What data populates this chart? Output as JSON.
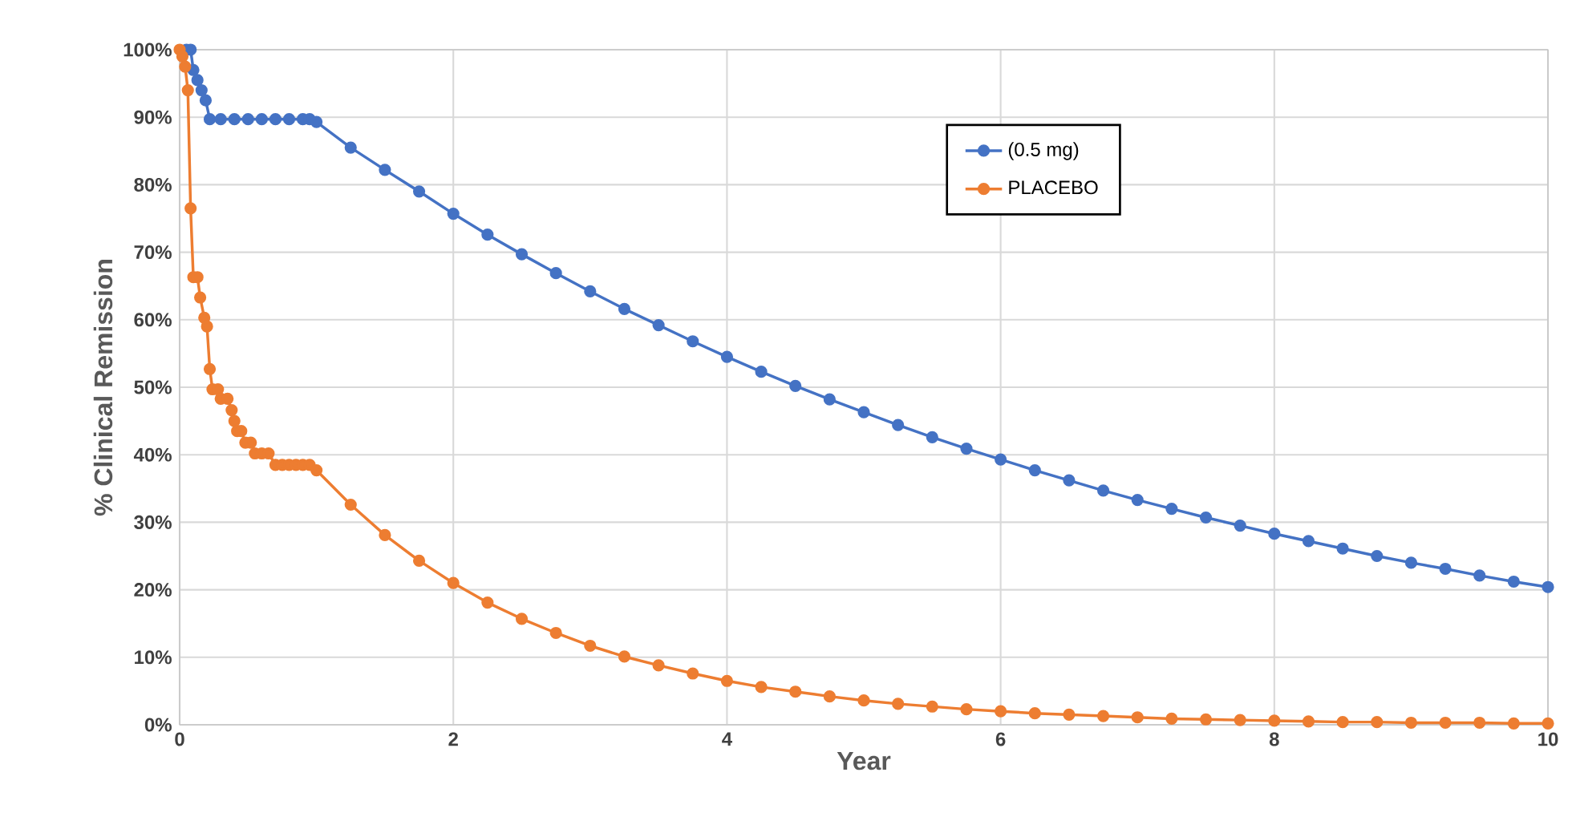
{
  "chart_data": {
    "type": "line",
    "xlabel": "Year",
    "ylabel": "% Clinical Remission",
    "xlim": [
      0,
      10
    ],
    "xticks": [
      0,
      2,
      4,
      6,
      8,
      10
    ],
    "ylim": [
      0,
      100
    ],
    "yticks": [
      {
        "value": 0,
        "label": "0%"
      },
      {
        "value": 10,
        "label": "10%"
      },
      {
        "value": 20,
        "label": "20%"
      },
      {
        "value": 30,
        "label": "30%"
      },
      {
        "value": 40,
        "label": "40%"
      },
      {
        "value": 50,
        "label": "50%"
      },
      {
        "value": 60,
        "label": "60%"
      },
      {
        "value": 70,
        "label": "70%"
      },
      {
        "value": 80,
        "label": "80%"
      },
      {
        "value": 90,
        "label": "90%"
      },
      {
        "value": 100,
        "label": "100%"
      }
    ],
    "grid": true,
    "legend": "top right",
    "marker": "circle",
    "line_style": "solid",
    "series": [
      {
        "name": "(0.5 mg)",
        "color": "#4472c4",
        "x": [
          0.05,
          0.08,
          0.1,
          0.13,
          0.16,
          0.19,
          0.22,
          0.3,
          0.4,
          0.5,
          0.6,
          0.7,
          0.8,
          0.9,
          0.95,
          1,
          1.25,
          1.5,
          1.75,
          2,
          2.25,
          2.5,
          2.75,
          3,
          3.25,
          3.5,
          3.75,
          4,
          4.25,
          4.5,
          4.75,
          5,
          5.25,
          5.5,
          5.75,
          6,
          6.25,
          6.5,
          6.75,
          7,
          7.25,
          7.5,
          7.75,
          8,
          8.25,
          8.5,
          8.75,
          9,
          9.25,
          9.5,
          9.75,
          10
        ],
        "values": [
          100,
          100,
          97,
          95.5,
          94,
          92.5,
          89.7,
          89.7,
          89.7,
          89.7,
          89.7,
          89.7,
          89.7,
          89.7,
          89.7,
          89.3,
          85.5,
          82.2,
          79,
          75.7,
          72.6,
          69.7,
          66.9,
          64.2,
          61.6,
          59.2,
          56.8,
          54.5,
          52.3,
          50.2,
          48.2,
          46.3,
          44.4,
          42.6,
          40.9,
          39.3,
          37.7,
          36.2,
          34.7,
          33.3,
          32,
          30.7,
          29.5,
          28.3,
          27.2,
          26.1,
          25,
          24,
          23.1,
          22.1,
          21.2,
          20.4
        ]
      },
      {
        "name": "PLACEBO",
        "color": "#ed7d31",
        "x": [
          0,
          0.02,
          0.04,
          0.06,
          0.08,
          0.1,
          0.13,
          0.15,
          0.18,
          0.2,
          0.22,
          0.24,
          0.28,
          0.3,
          0.35,
          0.38,
          0.4,
          0.42,
          0.45,
          0.48,
          0.52,
          0.55,
          0.6,
          0.65,
          0.7,
          0.75,
          0.8,
          0.85,
          0.9,
          0.95,
          1,
          1.25,
          1.5,
          1.75,
          2,
          2.25,
          2.5,
          2.75,
          3,
          3.25,
          3.5,
          3.75,
          4,
          4.25,
          4.5,
          4.75,
          5,
          5.25,
          5.5,
          5.75,
          6,
          6.25,
          6.5,
          6.75,
          7,
          7.25,
          7.5,
          7.75,
          8,
          8.25,
          8.5,
          8.75,
          9,
          9.25,
          9.5,
          9.75,
          10
        ],
        "values": [
          100,
          99,
          97.5,
          94,
          76.5,
          66.3,
          66.3,
          63.3,
          60.3,
          59,
          52.7,
          49.7,
          49.7,
          48.3,
          48.3,
          46.6,
          45,
          43.5,
          43.5,
          41.8,
          41.8,
          40.2,
          40.2,
          40.2,
          38.5,
          38.5,
          38.5,
          38.5,
          38.5,
          38.5,
          37.7,
          32.6,
          28.1,
          24.3,
          21,
          18.1,
          15.7,
          13.6,
          11.7,
          10.1,
          8.8,
          7.6,
          6.5,
          5.6,
          4.9,
          4.2,
          3.6,
          3.1,
          2.7,
          2.3,
          2,
          1.7,
          1.5,
          1.3,
          1.1,
          0.9,
          0.8,
          0.7,
          0.6,
          0.5,
          0.4,
          0.4,
          0.3,
          0.3,
          0.3,
          0.2,
          0.2
        ]
      }
    ]
  }
}
